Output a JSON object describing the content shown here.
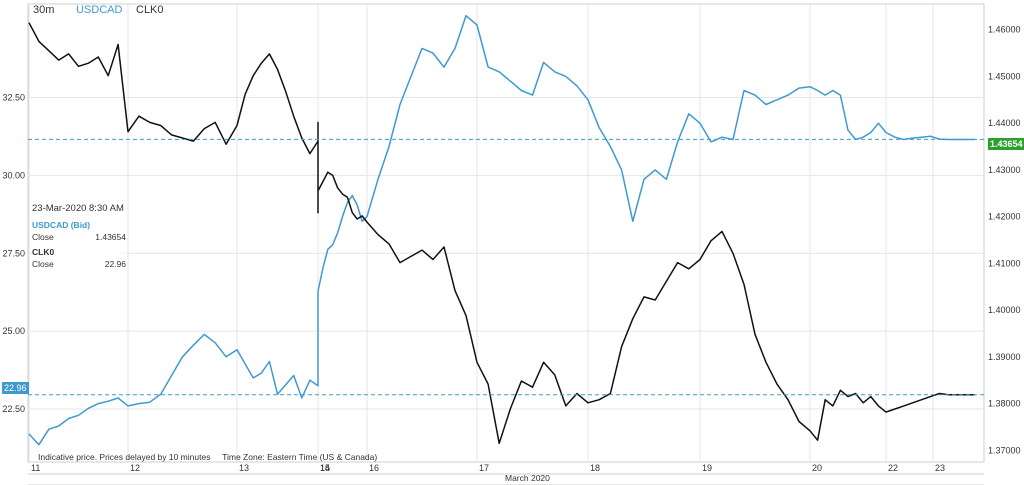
{
  "header": {
    "interval": "30m",
    "symbol1": "USDCAD",
    "symbol2": "CLK0"
  },
  "tooltip": {
    "datetime": "23-Mar-2020 8:30 AM",
    "series1_label": "USDCAD (Bid)",
    "close_label": "Close",
    "series1_close": "1.43654",
    "series2_label": "CLK0",
    "series2_close": "22.96"
  },
  "footer": {
    "note": "Indicative price. Prices delayed by 10 minutes",
    "tz": "Time Zone: Eastern Time (US & Canada)"
  },
  "month_label": "March 2020",
  "colors": {
    "usdcad": "#3d9ad1",
    "clk0": "#111111",
    "last_green": "#2ca02c",
    "last_blue": "#3d9ad1",
    "grid": "#e6e6e6"
  },
  "chart_data": {
    "type": "line",
    "x_ticks": [
      "11",
      "12",
      "13",
      "14",
      "15",
      "16",
      "17",
      "18",
      "19",
      "20",
      "22",
      "23"
    ],
    "left_axis": {
      "ticks": [
        "22.50",
        "25.00",
        "27.50",
        "30.00",
        "32.50"
      ],
      "range": [
        20.8,
        35.5
      ]
    },
    "right_axis": {
      "ticks": [
        "1.37000",
        "1.38000",
        "1.39000",
        "1.40000",
        "1.41000",
        "1.42000",
        "1.43000",
        "1.44000",
        "1.45000",
        "1.46000"
      ],
      "range": [
        1.3675,
        1.4655
      ]
    },
    "last_values": {
      "USDCAD": "1.43654",
      "CLK0": "22.96"
    },
    "series": [
      {
        "name": "USDCAD",
        "axis": "right",
        "x": [
          11.0,
          11.1,
          11.2,
          11.3,
          11.4,
          11.5,
          11.6,
          11.7,
          11.8,
          11.9,
          12.0,
          12.1,
          12.2,
          12.3,
          12.4,
          12.5,
          12.6,
          12.7,
          12.8,
          12.9,
          13.0,
          13.1,
          13.2,
          13.3,
          13.4,
          13.5,
          13.6,
          13.7,
          13.8,
          13.9,
          14.0,
          14.1,
          14.2,
          14.3,
          14.4,
          14.5,
          14.6,
          14.7,
          14.8,
          14.9,
          15.0,
          15.1,
          15.2,
          15.3,
          15.4,
          15.5,
          15.6,
          15.7,
          15.8,
          15.9,
          16.0,
          16.1,
          16.2,
          16.3,
          16.4,
          16.5,
          16.6,
          16.7,
          16.8,
          16.9,
          17.0,
          17.1,
          17.2,
          17.3,
          17.4,
          17.5,
          17.6,
          17.7,
          17.8,
          17.9,
          18.0,
          18.1,
          18.2,
          18.3,
          18.4,
          18.5,
          18.6,
          18.7,
          18.8,
          18.9,
          19.0,
          19.1,
          19.2,
          19.3,
          19.4,
          19.5,
          19.6,
          19.7,
          19.8,
          19.9,
          20.0,
          20.1,
          20.2,
          20.3,
          20.4,
          20.5,
          20.6,
          20.7,
          20.8,
          20.9,
          21.0,
          21.1,
          21.2,
          21.3,
          21.4,
          21.5,
          21.6,
          21.7,
          21.8,
          21.9,
          22.0,
          22.1
        ],
        "values": [
          1.3735,
          1.3712,
          1.3745,
          1.3752,
          1.3768,
          1.3775,
          1.379,
          1.38,
          1.3805,
          1.3812,
          1.3795,
          1.38,
          1.3803,
          1.382,
          1.386,
          1.39,
          1.3925,
          1.3948,
          1.393,
          1.39,
          1.3915,
          1.3885,
          1.3855,
          1.3865,
          1.389,
          1.382,
          1.384,
          1.386,
          1.3812,
          1.385,
          1.3838,
          1.3885,
          1.391,
          1.396,
          1.3985,
          1.399,
          1.3995,
          1.4,
          1.3995,
          1.402,
          1.404,
          1.409,
          1.413,
          1.414,
          1.4165,
          1.42,
          1.423,
          1.4245,
          1.4225,
          1.419,
          1.42,
          1.428,
          1.435,
          1.444,
          1.45,
          1.456,
          1.455,
          1.452,
          1.456,
          1.463,
          1.461,
          1.452,
          1.451,
          1.449,
          1.447,
          1.446,
          1.453,
          1.451,
          1.45,
          1.448,
          1.445,
          1.439,
          1.435,
          1.43,
          1.419,
          1.428,
          1.43,
          1.428,
          1.436,
          1.442,
          1.44,
          1.436,
          1.437,
          1.4365,
          1.447,
          1.446,
          1.444,
          1.445,
          1.446,
          1.4475,
          1.4478,
          1.447,
          1.446,
          1.447,
          1.446,
          1.4385,
          1.4365,
          1.437,
          1.438,
          1.44,
          1.438,
          1.437,
          1.4365,
          1.4368,
          1.437,
          1.4372,
          1.4366,
          1.4365,
          1.4365,
          1.4365,
          1.4365,
          1.4365
        ]
      },
      {
        "name": "CLK0",
        "axis": "left",
        "x": [
          11.0,
          11.1,
          11.2,
          11.3,
          11.4,
          11.5,
          11.6,
          11.7,
          11.8,
          11.9,
          12.0,
          12.1,
          12.2,
          12.3,
          12.4,
          12.5,
          12.6,
          12.7,
          12.8,
          12.9,
          13.0,
          13.1,
          13.2,
          13.3,
          13.4,
          13.5,
          13.6,
          13.7,
          13.8,
          13.9,
          14.0,
          14.1,
          14.2,
          14.3,
          14.4,
          14.5,
          14.6,
          14.7,
          14.8,
          14.9,
          15.0,
          15.1,
          15.2,
          15.3,
          15.4,
          15.5,
          15.6,
          15.7,
          15.8,
          15.9,
          16.0,
          16.1,
          16.2,
          16.3,
          16.4,
          16.5,
          16.6,
          16.7,
          16.8,
          16.9,
          17.0,
          17.1,
          17.2,
          17.3,
          17.4,
          17.5,
          17.6,
          17.7,
          17.8,
          17.9,
          18.0,
          18.1,
          18.2,
          18.3,
          18.4,
          18.5,
          18.6,
          18.7,
          18.8,
          18.9,
          19.0,
          19.1,
          19.2,
          19.3,
          19.4,
          19.5,
          19.6,
          19.7,
          19.8,
          19.9,
          20.0,
          20.1,
          20.2,
          20.3,
          20.4,
          20.5,
          20.6,
          20.7,
          20.8,
          20.9,
          21.0,
          21.1,
          21.2,
          21.3,
          21.4,
          21.5,
          21.6,
          21.7,
          21.8,
          21.9,
          22.0,
          22.1
        ],
        "values": [
          34.9,
          34.3,
          34.0,
          33.7,
          33.9,
          33.5,
          33.6,
          33.8,
          33.2,
          34.2,
          31.4,
          31.9,
          31.7,
          31.6,
          31.3,
          31.2,
          31.1,
          31.5,
          31.7,
          31.0,
          31.6,
          32.6,
          33.2,
          33.6,
          33.9,
          33.4,
          32.7,
          31.9,
          31.2,
          30.7,
          31.1,
          31.6,
          31.7,
          30.7,
          30.3,
          29.9,
          29.4,
          29.1,
          28.8,
          29.0,
          29.5,
          29.8,
          30.1,
          30.0,
          29.6,
          29.4,
          29.3,
          28.8,
          28.6,
          28.7,
          28.5,
          28.1,
          27.8,
          27.2,
          27.4,
          27.6,
          27.3,
          27.7,
          26.3,
          25.5,
          24.0,
          23.3,
          21.4,
          22.5,
          23.4,
          23.2,
          24.0,
          23.6,
          22.6,
          23.0,
          22.7,
          22.8,
          23.0,
          24.5,
          25.4,
          26.1,
          26.0,
          26.6,
          27.2,
          27.0,
          27.3,
          27.9,
          28.2,
          27.5,
          26.5,
          24.9,
          24.0,
          23.3,
          22.8,
          22.1,
          21.8,
          21.5,
          22.8,
          22.6,
          23.1,
          22.9,
          23.0,
          22.7,
          22.9,
          22.6,
          22.4,
          22.5,
          22.6,
          22.7,
          22.8,
          22.9,
          23.0,
          22.96,
          22.96,
          22.96,
          22.96,
          22.96
        ]
      }
    ]
  }
}
